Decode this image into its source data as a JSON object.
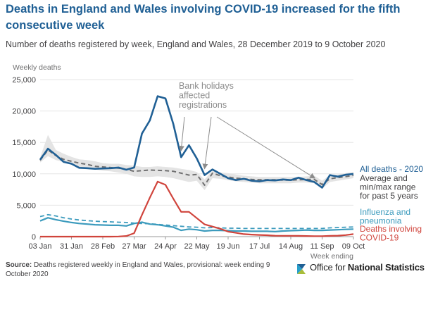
{
  "header": {
    "title": "Deaths in England and Wales involving COVID-19 increased for the fifth consecutive week",
    "subtitle": "Number of deaths registered by week, England and Wales, 28 December 2019 to 9 October 2020"
  },
  "footer": {
    "source_label": "Source:",
    "source_text": "Deaths registered weekly in England and Wales, provisional: week ending 9 October 2020",
    "logo_text_regular": "Office for ",
    "logo_text_bold": "National Statistics"
  },
  "colors": {
    "all_deaths": "#206095",
    "average": "#707071",
    "range_band": "#e4e4e4",
    "influenza": "#3c9bbd",
    "covid": "#d0443c",
    "annotation": "#8c8c8c",
    "title": "#206095"
  },
  "chart_data": {
    "type": "line",
    "ylabel": "Weekly deaths",
    "xlabel": "Week ending",
    "ylim": [
      0,
      25000
    ],
    "yticks": [
      0,
      5000,
      10000,
      15000,
      20000,
      25000
    ],
    "ytick_labels": [
      "0",
      "5,000",
      "10,000",
      "15,000",
      "20,000",
      "25,000"
    ],
    "xtick_labels": [
      "03 Jan",
      "31 Jan",
      "28 Feb",
      "27 Mar",
      "24 Apr",
      "22 May",
      "19 Jun",
      "17 Jul",
      "14 Aug",
      "11 Sep",
      "09 Oct"
    ],
    "xtick_weeks": [
      1,
      5,
      9,
      13,
      17,
      21,
      25,
      29,
      33,
      37,
      41
    ],
    "weeks": 41,
    "series": [
      {
        "name": "All deaths - 2020",
        "key": "all_deaths",
        "values": [
          12250,
          14000,
          13000,
          11900,
          11600,
          10950,
          10900,
          10800,
          10850,
          10900,
          11000,
          10650,
          11000,
          16400,
          18500,
          22350,
          22000,
          17950,
          12650,
          14550,
          12450,
          9800,
          10700,
          10000,
          9300,
          9000,
          9200,
          8900,
          8800,
          9000,
          8950,
          9100,
          9000,
          9400,
          9000,
          8700,
          7800,
          9800,
          9550,
          9850,
          9980
        ]
      },
      {
        "name": "Average and min/max range for past 5 years",
        "key": "average",
        "values": [
          12150,
          13800,
          12900,
          12300,
          12000,
          11700,
          11500,
          11200,
          11100,
          11000,
          10900,
          10700,
          10400,
          10500,
          10600,
          10550,
          10500,
          10400,
          10100,
          9800,
          9900,
          8200,
          10100,
          9700,
          9500,
          9300,
          9200,
          9100,
          9050,
          9050,
          9050,
          9000,
          9000,
          9050,
          9100,
          9100,
          8300,
          9200,
          9400,
          9550,
          9750
        ]
      },
      {
        "name": "Influenza and pneumonia",
        "key": "influenza",
        "values": [
          2500,
          3000,
          2700,
          2450,
          2250,
          2100,
          2000,
          1900,
          1850,
          1800,
          1800,
          1700,
          2100,
          2300,
          2000,
          1900,
          1700,
          1500,
          1000,
          1200,
          1100,
          900,
          1000,
          1000,
          950,
          900,
          900,
          850,
          850,
          850,
          800,
          900,
          950,
          1000,
          1050,
          1000,
          1000,
          1050,
          1100,
          1150,
          1200
        ]
      },
      {
        "name": "Flu average (past 5 years)",
        "key": "influenza_avg",
        "values": [
          3200,
          3500,
          3300,
          3000,
          2800,
          2650,
          2550,
          2450,
          2400,
          2350,
          2300,
          2250,
          2150,
          2100,
          2050,
          1950,
          1850,
          1750,
          1650,
          1550,
          1500,
          1400,
          1450,
          1400,
          1350,
          1350,
          1300,
          1300,
          1300,
          1300,
          1300,
          1300,
          1300,
          1300,
          1300,
          1300,
          1300,
          1400,
          1450,
          1500,
          1550
        ]
      },
      {
        "name": "Deaths involving COVID-19",
        "key": "covid",
        "values": [
          0,
          0,
          0,
          0,
          0,
          0,
          0,
          0,
          0,
          0,
          20,
          100,
          550,
          3450,
          6200,
          8750,
          8250,
          6050,
          3950,
          3950,
          2950,
          1950,
          1600,
          1250,
          800,
          600,
          400,
          330,
          270,
          220,
          150,
          140,
          140,
          120,
          100,
          80,
          80,
          120,
          160,
          250,
          400
        ]
      }
    ],
    "range": {
      "name": "Min/max range past 5 years",
      "min": [
        11800,
        12800,
        12200,
        11900,
        11500,
        11000,
        10800,
        10700,
        10500,
        10400,
        10200,
        10000,
        9600,
        9500,
        9500,
        9600,
        9500,
        9300,
        9000,
        8700,
        8900,
        7400,
        9300,
        9200,
        9000,
        8800,
        8700,
        8600,
        8500,
        8500,
        8500,
        8500,
        8500,
        8600,
        8600,
        8500,
        7600,
        8700,
        8900,
        9100,
        9300
      ],
      "max": [
        12600,
        16200,
        13800,
        13200,
        12700,
        12300,
        12200,
        12000,
        11700,
        11600,
        11600,
        11400,
        11300,
        11100,
        11100,
        11200,
        11100,
        11000,
        10800,
        10600,
        10300,
        9100,
        10500,
        10200,
        10100,
        9900,
        9700,
        9600,
        9500,
        9500,
        9500,
        9500,
        9500,
        9500,
        9600,
        9700,
        8900,
        9800,
        9900,
        10100,
        10300
      ]
    },
    "series_labels": [
      {
        "key": "all_deaths",
        "lines": [
          "All deaths - 2020"
        ]
      },
      {
        "key": "average",
        "lines": [
          "Average and",
          "min/max range",
          "for past 5 years"
        ]
      },
      {
        "key": "influenza",
        "lines": [
          "Influenza and",
          "pneumonia"
        ]
      },
      {
        "key": "covid",
        "lines": [
          "Deaths involving",
          "COVID-19"
        ]
      }
    ],
    "annotation": {
      "lines": [
        "Bank holidays",
        "affected",
        "registrations"
      ],
      "target_weeks": [
        19,
        22,
        36
      ]
    }
  }
}
